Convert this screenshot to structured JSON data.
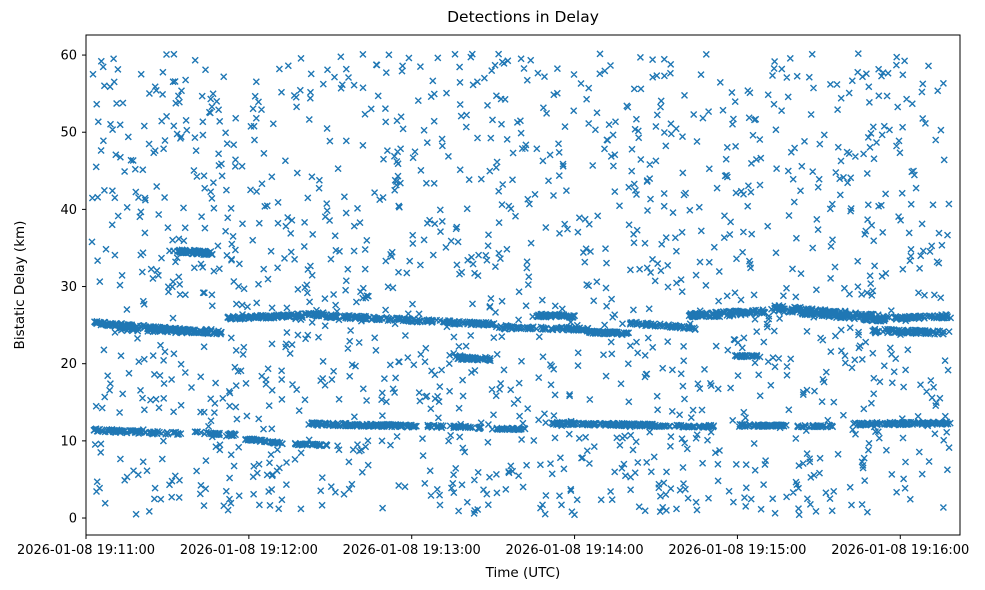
{
  "chart_data": {
    "type": "scatter",
    "title": "Detections in Delay",
    "xlabel": "Time (UTC)",
    "ylabel": "Bistatic Delay (km)",
    "grid": false,
    "legend": null,
    "marker": {
      "style": "x",
      "color": "#1f77b4",
      "half_size_px": 3,
      "stroke_px": 1.4,
      "opacity": 1.0
    },
    "x_axis": {
      "unit": "seconds after 2026-01-08 19:11:00 UTC",
      "xlim_s": [
        0,
        322
      ],
      "ticks": [
        {
          "t": 0,
          "label": "2026-01-08 19:11:00"
        },
        {
          "t": 60,
          "label": "2026-01-08 19:12:00"
        },
        {
          "t": 120,
          "label": "2026-01-08 19:13:00"
        },
        {
          "t": 180,
          "label": "2026-01-08 19:14:00"
        },
        {
          "t": 240,
          "label": "2026-01-08 19:15:00"
        },
        {
          "t": 300,
          "label": "2026-01-08 19:16:00"
        }
      ]
    },
    "y_axis": {
      "unit": "km",
      "ylim": [
        -2.2,
        62.6
      ],
      "ticks": [
        0,
        10,
        20,
        30,
        40,
        50,
        60
      ]
    },
    "seed": 42,
    "tracks": [
      {
        "t0": 3,
        "t1": 50,
        "y0": 25.3,
        "y1": 23.9,
        "n": 150,
        "jitter": 0.22
      },
      {
        "t0": 12,
        "t1": 40,
        "y0": 24.5,
        "y1": 24.1,
        "n": 50,
        "jitter": 0.18
      },
      {
        "t0": 52,
        "t1": 88,
        "y0": 25.9,
        "y1": 26.4,
        "n": 130,
        "jitter": 0.22
      },
      {
        "t0": 88,
        "t1": 150,
        "y0": 26.2,
        "y1": 25.1,
        "n": 170,
        "jitter": 0.22
      },
      {
        "t0": 150,
        "t1": 185,
        "y0": 24.7,
        "y1": 24.5,
        "n": 80,
        "jitter": 0.2
      },
      {
        "t0": 165,
        "t1": 180,
        "y0": 26.3,
        "y1": 26.1,
        "n": 60,
        "jitter": 0.2
      },
      {
        "t0": 185,
        "t1": 200,
        "y0": 24.1,
        "y1": 23.9,
        "n": 70,
        "jitter": 0.18
      },
      {
        "t0": 200,
        "t1": 225,
        "y0": 25.3,
        "y1": 24.6,
        "n": 60,
        "jitter": 0.2
      },
      {
        "t0": 222,
        "t1": 250,
        "y0": 26.2,
        "y1": 26.8,
        "n": 110,
        "jitter": 0.3
      },
      {
        "t0": 252,
        "t1": 296,
        "y0": 27.2,
        "y1": 25.8,
        "n": 200,
        "jitter": 0.45
      },
      {
        "t0": 290,
        "t1": 318,
        "y0": 24.3,
        "y1": 24.0,
        "n": 80,
        "jitter": 0.25
      },
      {
        "t0": 296,
        "t1": 318,
        "y0": 25.9,
        "y1": 26.1,
        "n": 70,
        "jitter": 0.2
      },
      {
        "t0": 238,
        "t1": 248,
        "y0": 21.0,
        "y1": 21.0,
        "n": 25,
        "jitter": 0.15
      },
      {
        "t0": 3,
        "t1": 35,
        "y0": 11.4,
        "y1": 10.9,
        "n": 80,
        "jitter": 0.2
      },
      {
        "t0": 40,
        "t1": 55,
        "y0": 11.1,
        "y1": 10.8,
        "n": 30,
        "jitter": 0.15
      },
      {
        "t0": 58,
        "t1": 72,
        "y0": 10.3,
        "y1": 9.7,
        "n": 45,
        "jitter": 0.15
      },
      {
        "t0": 76,
        "t1": 90,
        "y0": 9.6,
        "y1": 9.4,
        "n": 30,
        "jitter": 0.12
      },
      {
        "t0": 82,
        "t1": 122,
        "y0": 12.2,
        "y1": 11.9,
        "n": 140,
        "jitter": 0.18
      },
      {
        "t0": 125,
        "t1": 145,
        "y0": 11.9,
        "y1": 11.7,
        "n": 45,
        "jitter": 0.15
      },
      {
        "t0": 150,
        "t1": 162,
        "y0": 11.6,
        "y1": 11.5,
        "n": 30,
        "jitter": 0.12
      },
      {
        "t0": 172,
        "t1": 212,
        "y0": 12.3,
        "y1": 12.0,
        "n": 150,
        "jitter": 0.18
      },
      {
        "t0": 212,
        "t1": 232,
        "y0": 11.9,
        "y1": 11.9,
        "n": 45,
        "jitter": 0.15
      },
      {
        "t0": 240,
        "t1": 258,
        "y0": 12.0,
        "y1": 12.0,
        "n": 70,
        "jitter": 0.15
      },
      {
        "t0": 262,
        "t1": 275,
        "y0": 11.9,
        "y1": 11.9,
        "n": 25,
        "jitter": 0.12
      },
      {
        "t0": 283,
        "t1": 318,
        "y0": 12.2,
        "y1": 12.3,
        "n": 110,
        "jitter": 0.18
      },
      {
        "t0": 34,
        "t1": 46,
        "y0": 34.6,
        "y1": 34.3,
        "n": 70,
        "jitter": 0.25
      },
      {
        "t0": 136,
        "t1": 149,
        "y0": 20.8,
        "y1": 20.5,
        "n": 55,
        "jitter": 0.2
      }
    ],
    "clutter": {
      "n": 1500,
      "t_range": [
        2,
        318
      ],
      "y_range": [
        0.4,
        60.2
      ]
    }
  }
}
